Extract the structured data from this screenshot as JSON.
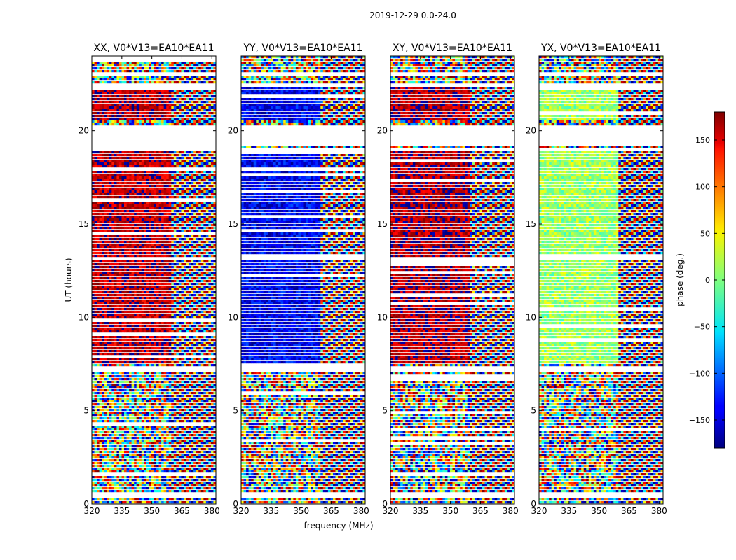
{
  "chart_data": {
    "type": "heatmap",
    "suptitle": "2019-12-29 0.0-24.0",
    "xlabel": "frequency (MHz)",
    "ylabel": "UT (hours)",
    "xlim": [
      320,
      382
    ],
    "ylim": [
      0,
      24
    ],
    "x_ticks": [
      320,
      335,
      350,
      365,
      380
    ],
    "y_ticks": [
      0,
      5,
      10,
      15,
      20
    ],
    "panels": [
      {
        "title": "XX, V0*V13=EA10*EA11",
        "polarization": "XX",
        "dominant_phase_deg": 160
      },
      {
        "title": "YY, V0*V13=EA10*EA11",
        "polarization": "YY",
        "dominant_phase_deg": -140
      },
      {
        "title": "XY, V0*V13=EA10*EA11",
        "polarization": "XY",
        "dominant_phase_deg": 165
      },
      {
        "title": "YX, V0*V13=EA10*EA11",
        "polarization": "YX",
        "dominant_phase_deg": 10
      }
    ],
    "flagged_time_ranges_hours": [
      [
        19.2,
        20.3
      ],
      [
        7.1,
        7.4
      ],
      [
        0.35,
        0.55
      ],
      [
        1.9,
        2.0
      ],
      [
        23.0,
        23.1
      ],
      [
        22.4,
        22.5
      ],
      [
        18.9,
        19.0
      ],
      [
        13.05,
        13.15
      ]
    ],
    "colorbar": {
      "label": "phase (deg.)",
      "range": [
        -180,
        180
      ],
      "ticks": [
        150,
        100,
        50,
        0,
        -50,
        -100,
        -150
      ],
      "tick_labels": [
        "150",
        "100",
        "50",
        "0",
        "−50",
        "−100",
        "−150"
      ],
      "colormap": "jet"
    }
  }
}
